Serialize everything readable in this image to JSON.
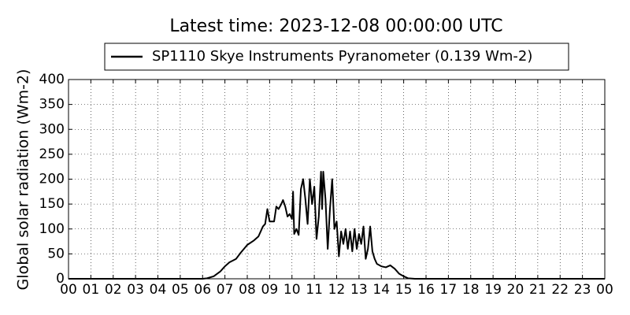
{
  "chart_data": {
    "type": "line",
    "title": "Latest time: 2023-12-08 00:00:00 UTC",
    "ylabel": "Global solar radiation (Wm-2)",
    "legend": "top",
    "grid": true,
    "xlim": [
      0,
      24
    ],
    "xticks": [
      {
        "value": 0,
        "label": "00"
      },
      {
        "value": 1,
        "label": "01"
      },
      {
        "value": 2,
        "label": "02"
      },
      {
        "value": 3,
        "label": "03"
      },
      {
        "value": 4,
        "label": "04"
      },
      {
        "value": 5,
        "label": "05"
      },
      {
        "value": 6,
        "label": "06"
      },
      {
        "value": 7,
        "label": "07"
      },
      {
        "value": 8,
        "label": "08"
      },
      {
        "value": 9,
        "label": "09"
      },
      {
        "value": 10,
        "label": "10"
      },
      {
        "value": 11,
        "label": "11"
      },
      {
        "value": 12,
        "label": "12"
      },
      {
        "value": 13,
        "label": "13"
      },
      {
        "value": 14,
        "label": "14"
      },
      {
        "value": 15,
        "label": "15"
      },
      {
        "value": 16,
        "label": "16"
      },
      {
        "value": 17,
        "label": "17"
      },
      {
        "value": 18,
        "label": "18"
      },
      {
        "value": 19,
        "label": "19"
      },
      {
        "value": 20,
        "label": "20"
      },
      {
        "value": 21,
        "label": "21"
      },
      {
        "value": 22,
        "label": "22"
      },
      {
        "value": 23,
        "label": "23"
      },
      {
        "value": 24,
        "label": "00"
      }
    ],
    "ylim": [
      0,
      400
    ],
    "yticks": [
      0,
      50,
      100,
      150,
      200,
      250,
      300,
      350,
      400
    ],
    "x": [
      0,
      6,
      6.2,
      6.5,
      6.8,
      7.0,
      7.2,
      7.5,
      7.7,
      8.0,
      8.3,
      8.5,
      8.7,
      8.8,
      8.9,
      9.0,
      9.2,
      9.3,
      9.4,
      9.5,
      9.6,
      9.7,
      9.8,
      9.9,
      10.0,
      10.05,
      10.1,
      10.2,
      10.3,
      10.4,
      10.5,
      10.6,
      10.7,
      10.8,
      10.9,
      11.0,
      11.1,
      11.2,
      11.3,
      11.35,
      11.4,
      11.5,
      11.6,
      11.7,
      11.8,
      11.9,
      12.0,
      12.1,
      12.2,
      12.3,
      12.4,
      12.5,
      12.6,
      12.7,
      12.8,
      12.9,
      13.0,
      13.1,
      13.2,
      13.3,
      13.4,
      13.5,
      13.6,
      13.7,
      13.8,
      14.0,
      14.2,
      14.4,
      14.6,
      14.8,
      15.0,
      15.2,
      15.5,
      24
    ],
    "series": [
      {
        "name": "SP1110 Skye Instruments Pyranometer (0.139 Wm-2)",
        "color": "#000000",
        "values": [
          0,
          0,
          1,
          5,
          15,
          25,
          33,
          40,
          52,
          68,
          77,
          85,
          105,
          110,
          140,
          115,
          115,
          145,
          140,
          148,
          158,
          145,
          125,
          130,
          120,
          175,
          90,
          100,
          88,
          180,
          200,
          160,
          110,
          200,
          150,
          185,
          80,
          125,
          215,
          140,
          215,
          160,
          60,
          140,
          200,
          100,
          115,
          45,
          95,
          70,
          100,
          60,
          95,
          55,
          100,
          60,
          90,
          70,
          105,
          40,
          60,
          105,
          55,
          40,
          30,
          25,
          23,
          27,
          20,
          10,
          5,
          1,
          0,
          0
        ]
      }
    ]
  }
}
